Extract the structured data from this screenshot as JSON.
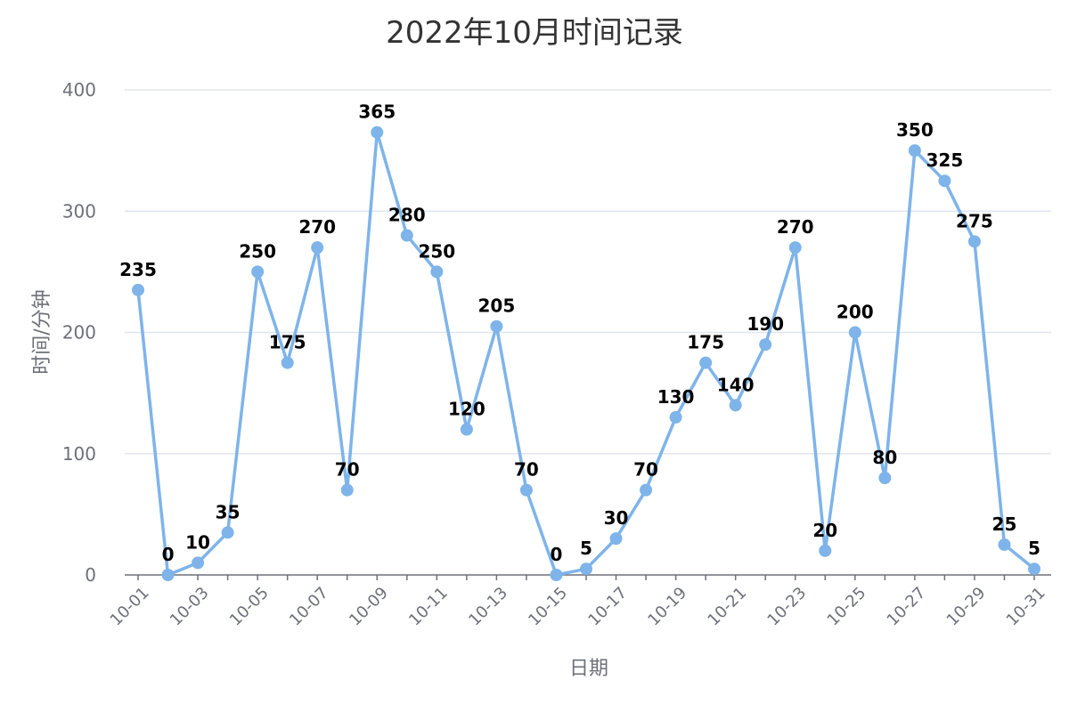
{
  "chart_data": {
    "type": "line",
    "title": "2022年10月时间记录",
    "xlabel": "日期",
    "ylabel": "时间/分钟",
    "ylim": [
      0,
      400
    ],
    "yticks": [
      0,
      100,
      200,
      300,
      400
    ],
    "grid": true,
    "categories": [
      "10-01",
      "10-02",
      "10-03",
      "10-04",
      "10-05",
      "10-06",
      "10-07",
      "10-08",
      "10-09",
      "10-10",
      "10-11",
      "10-12",
      "10-13",
      "10-14",
      "10-15",
      "10-16",
      "10-17",
      "10-18",
      "10-19",
      "10-20",
      "10-21",
      "10-22",
      "10-23",
      "10-24",
      "10-25",
      "10-26",
      "10-27",
      "10-28",
      "10-29",
      "10-30",
      "10-31"
    ],
    "visible_tick_labels": [
      "10-01",
      "10-03",
      "10-05",
      "10-07",
      "10-09",
      "10-11",
      "10-13",
      "10-15",
      "10-17",
      "10-19",
      "10-21",
      "10-23",
      "10-25",
      "10-27",
      "10-29",
      "10-31"
    ],
    "values": [
      235,
      0,
      10,
      35,
      250,
      175,
      270,
      70,
      365,
      280,
      250,
      120,
      205,
      70,
      0,
      5,
      30,
      70,
      130,
      175,
      140,
      190,
      270,
      20,
      200,
      80,
      350,
      325,
      275,
      25,
      5
    ],
    "line_color": "#7eb4ea"
  }
}
